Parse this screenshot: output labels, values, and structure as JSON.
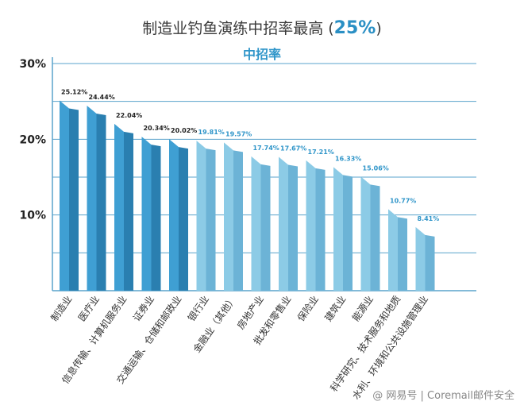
{
  "chart_data": {
    "type": "bar",
    "title_main": "制造业钓鱼演练中招率最高 (",
    "title_highlight": "25%",
    "title_tail": ")",
    "subtitle": "中招率",
    "categories": [
      "制造业",
      "医疗业",
      "信息传输、计算机服务业",
      "证券业",
      "交通运输、仓储和邮政业",
      "银行业",
      "金融业（其他）",
      "房地产业",
      "批发和零售业",
      "保险业",
      "建筑业",
      "能源业",
      "科学研究、技术服务和地质",
      "水利、环境和公共设施管理业"
    ],
    "values": [
      25.12,
      24.44,
      22.04,
      20.34,
      20.02,
      19.81,
      19.57,
      17.74,
      17.67,
      17.21,
      16.33,
      15.06,
      10.77,
      8.41
    ],
    "value_labels": [
      "25.12%",
      "24.44%",
      "22.04%",
      "20.34%",
      "20.02%",
      "19.81%",
      "19.57%",
      "17.74%",
      "17.67%",
      "17.21%",
      "16.33%",
      "15.06%",
      "10.77%",
      "8.41%"
    ],
    "yticks": [
      10,
      20,
      30
    ],
    "ytick_labels": [
      "10%",
      "20%",
      "30%"
    ],
    "ylim": [
      0,
      30
    ],
    "grid": true,
    "colors": {
      "dark_front": "#3f9fd3",
      "dark_side": "#2a7fb0",
      "light_front": "#8ccbe6",
      "light_side": "#6cb3d6",
      "dark_label": "#222222",
      "light_label": "#2f95c9",
      "grid": "#5aa3cc"
    },
    "dark_count": 5
  },
  "watermark": "@ 网易号 | Coremail邮件安全"
}
